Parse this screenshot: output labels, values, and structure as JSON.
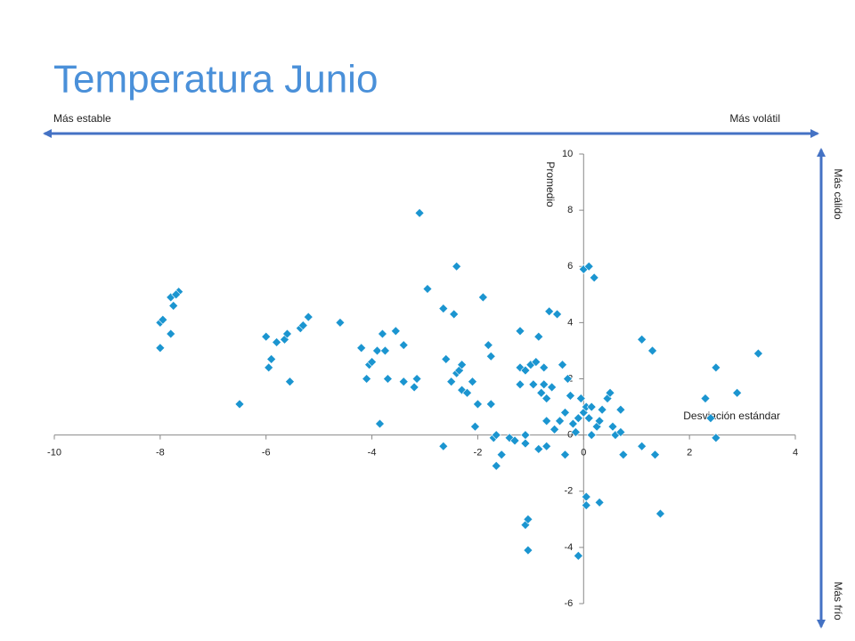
{
  "chart_data": {
    "type": "scatter",
    "title": "Temperatura Junio",
    "xlabel": "Desviación estándar",
    "ylabel": "Promedio",
    "annotations": [
      "Más estable",
      "Más volátil",
      "Más cálido",
      "Más frío"
    ],
    "xlim": [
      -10,
      4
    ],
    "xticks": [
      -10,
      -8,
      -6,
      -4,
      -2,
      0,
      2,
      4
    ],
    "ylim": [
      -6,
      10
    ],
    "yticks": [
      -6,
      -4,
      -2,
      0,
      2,
      4,
      6,
      8,
      10
    ],
    "series": [
      {
        "color": "#1b95d0",
        "x": [
          -8,
          -8,
          -7.95,
          -7.8,
          -7.8,
          -7.75,
          -7.65,
          -7.7,
          -6.5,
          -6,
          -5.95,
          -5.9,
          -5.8,
          -5.65,
          -5.6,
          -5.55,
          -5.35,
          -5.3,
          -5.2,
          -4.6,
          -4.2,
          -4.1,
          -4.05,
          -4,
          -3.9,
          -3.85,
          -3.8,
          -3.75,
          -3.7,
          -3.55,
          -3.4,
          -3.4,
          -3.2,
          -3.15,
          -3.1,
          -2.95,
          -2.65,
          -2.6,
          -2.65,
          -2.5,
          -2.45,
          -2.4,
          -2.4,
          -2.35,
          -2.3,
          -2.3,
          -2.2,
          -2.1,
          -2.05,
          -2,
          -1.9,
          -1.8,
          -1.75,
          -1.75,
          -1.7,
          -1.65,
          -1.55,
          -1.65,
          -1.4,
          -1.3,
          -1.2,
          -1.2,
          -1.2,
          -1.1,
          -1.1,
          -1.1,
          -1.1,
          -1.05,
          -1.05,
          -1,
          -0.9,
          -0.95,
          -0.85,
          -0.85,
          -0.8,
          -0.75,
          -0.75,
          -0.7,
          -0.7,
          -0.7,
          -0.65,
          -0.6,
          -0.55,
          -0.5,
          -0.45,
          -0.4,
          -0.35,
          -0.35,
          -0.3,
          -0.25,
          -0.2,
          -0.15,
          -0.1,
          -0.05,
          0,
          0,
          0.05,
          0.05,
          0.05,
          0.1,
          -0.1,
          0.1,
          0.15,
          0.15,
          0.2,
          0.25,
          0.3,
          0.3,
          0.35,
          0.45,
          0.5,
          0.55,
          0.6,
          0.7,
          0.7,
          0.75,
          1.1,
          1.1,
          1.3,
          1.35,
          1.45,
          2.3,
          2.5,
          2.5,
          2.4,
          2.9,
          3.3
        ],
        "values": [
          3.1,
          4,
          4.1,
          3.6,
          4.9,
          4.6,
          5.1,
          5,
          1.1,
          3.5,
          2.4,
          2.7,
          3.3,
          3.4,
          3.6,
          1.9,
          3.8,
          3.9,
          4.2,
          4,
          3.1,
          2,
          2.5,
          2.6,
          3,
          0.4,
          3.6,
          3,
          2,
          3.7,
          3.2,
          1.9,
          1.7,
          2,
          7.9,
          5.2,
          4.5,
          2.7,
          -0.4,
          1.9,
          4.3,
          6,
          2.2,
          2.3,
          2.5,
          1.6,
          1.5,
          1.9,
          0.3,
          1.1,
          4.9,
          3.2,
          2.8,
          1.1,
          -0.1,
          0,
          -0.7,
          -1.1,
          -0.1,
          -0.2,
          3.7,
          2.4,
          1.8,
          2.3,
          0,
          -0.3,
          -3.2,
          -3,
          -4.1,
          2.5,
          2.6,
          1.8,
          3.5,
          -0.5,
          1.5,
          2.4,
          1.8,
          1.3,
          0.5,
          -0.4,
          4.4,
          1.7,
          0.2,
          4.3,
          0.5,
          2.5,
          0.8,
          -0.7,
          2,
          1.4,
          0.4,
          0.1,
          0.6,
          1.3,
          5.9,
          0.8,
          1,
          -2.2,
          -2.5,
          6,
          -4.3,
          0.6,
          1,
          0,
          5.6,
          0.3,
          0.5,
          -2.4,
          0.9,
          1.3,
          1.5,
          0.3,
          0,
          0.9,
          0.1,
          -0.7,
          3.4,
          -0.4,
          3,
          -0.7,
          -2.8,
          1.3,
          2.4,
          -0.1,
          0.6,
          1.5,
          2.9
        ]
      }
    ]
  }
}
